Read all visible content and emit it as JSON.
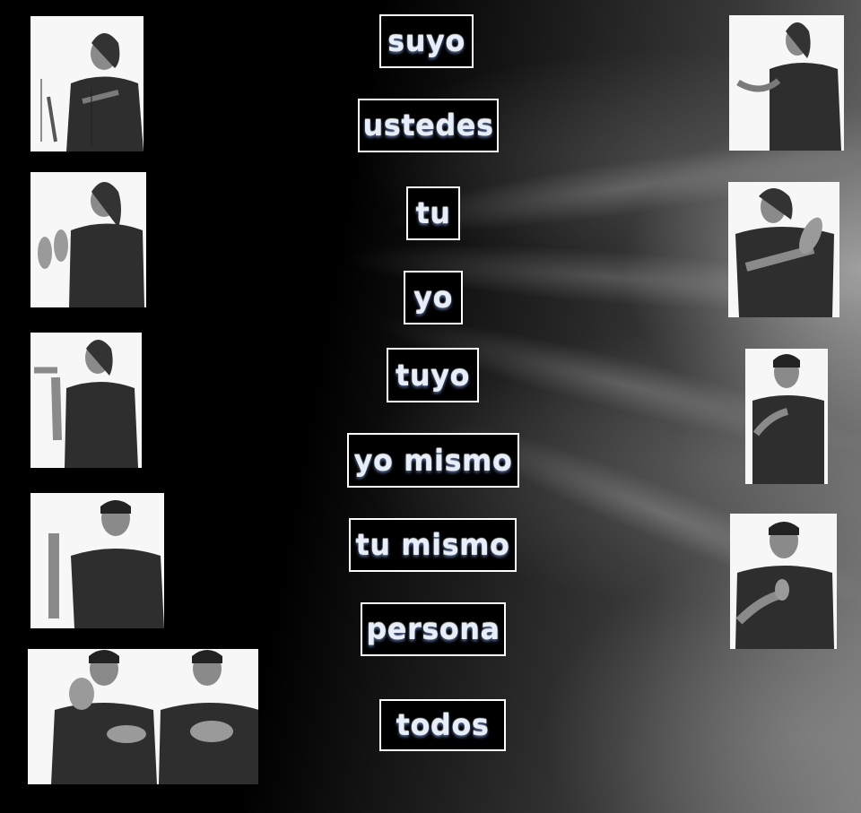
{
  "words": [
    {
      "label": "suyo"
    },
    {
      "label": "ustedes"
    },
    {
      "label": "tu"
    },
    {
      "label": "yo"
    },
    {
      "label": "tuyo"
    },
    {
      "label": "yo mismo"
    },
    {
      "label": "tu mismo"
    },
    {
      "label": "persona"
    },
    {
      "label": "todos"
    }
  ],
  "photos": [
    {
      "name": "sign-photo-suyo"
    },
    {
      "name": "sign-photo-ustedes"
    },
    {
      "name": "sign-photo-tu"
    },
    {
      "name": "sign-photo-yo"
    },
    {
      "name": "sign-photo-tuyo"
    },
    {
      "name": "sign-photo-yo-mismo"
    },
    {
      "name": "sign-photo-tu-mismo"
    },
    {
      "name": "sign-photo-persona"
    },
    {
      "name": "sign-photo-todos"
    }
  ],
  "colors": {
    "background": "#000000",
    "box_border": "#ffffff",
    "text": "#e8eef8",
    "text_glow": "#5c6f9a"
  }
}
